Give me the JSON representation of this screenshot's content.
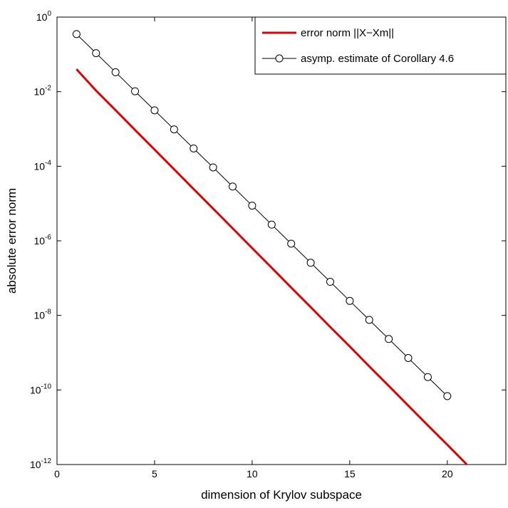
{
  "chart_data": {
    "type": "line",
    "xlabel": "dimension of Krylov subspace",
    "ylabel": "absolute error norm",
    "log_y": true,
    "legend": "upper right",
    "xlim": [
      0,
      23
    ],
    "xticks": [
      0,
      5,
      10,
      15,
      20
    ],
    "ylim": [
      1e-12,
      1
    ],
    "yticks": [
      {
        "value": 1,
        "label": "10^0"
      },
      {
        "value": 0.01,
        "label": "10^-2"
      },
      {
        "value": 0.0001,
        "label": "10^-4"
      },
      {
        "value": 1e-06,
        "label": "10^-6"
      },
      {
        "value": 1e-08,
        "label": "10^-8"
      },
      {
        "value": 1e-10,
        "label": "10^-10"
      },
      {
        "value": 1e-12,
        "label": "10^-12"
      }
    ],
    "series": [
      {
        "name": "error norm ||X−Xm||",
        "color": "#e00000",
        "marker": "none",
        "x": [
          1,
          2,
          3,
          4,
          5,
          6,
          7,
          8,
          9,
          10,
          11,
          12,
          13,
          14,
          15,
          16,
          17,
          18,
          19,
          20,
          21
        ],
        "values": [
          0.04,
          0.0107,
          0.0032,
          0.00094,
          0.00028,
          8.3e-05,
          2.45e-05,
          7.3e-06,
          2.16e-06,
          6.4e-07,
          1.9e-07,
          5.6e-08,
          1.67e-08,
          4.9e-09,
          1.47e-09,
          4.3e-10,
          1.29e-10,
          3.8e-11,
          1.13e-11,
          3.4e-12,
          1e-12
        ]
      },
      {
        "name": "asymp. estimate of Corollary 4.6",
        "color": "#000000",
        "marker": "circle",
        "x": [
          1,
          2,
          3,
          4,
          5,
          6,
          7,
          8,
          9,
          10,
          11,
          12,
          13,
          14,
          15,
          16,
          17,
          18,
          19,
          20
        ],
        "values": [
          0.35,
          0.108,
          0.0333,
          0.01026,
          0.00316,
          0.000975,
          0.0003,
          9.3e-05,
          2.86e-05,
          8.8e-06,
          2.72e-06,
          8.4e-07,
          2.58e-07,
          7.96e-08,
          2.45e-08,
          7.57e-09,
          2.33e-09,
          7.19e-10,
          2.22e-10,
          6.84e-11
        ]
      }
    ]
  }
}
